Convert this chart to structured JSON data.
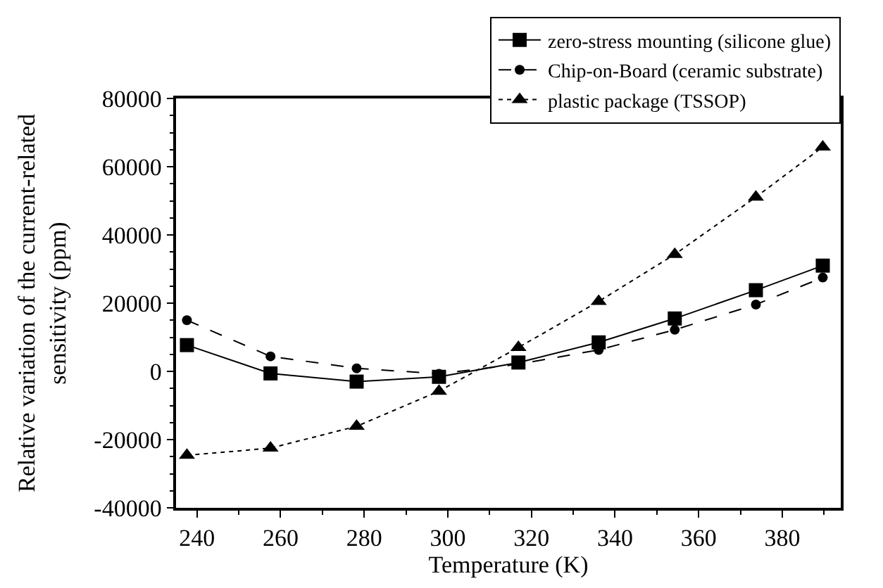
{
  "chart_data": {
    "type": "line",
    "xlabel": "Temperature (K)",
    "ylabel": "Relative variation of the current-related\nsensitivity (ppm)",
    "xlim": [
      235,
      394
    ],
    "xticks": [
      240,
      260,
      280,
      300,
      320,
      340,
      360,
      380
    ],
    "ylim": [
      -40000,
      80000
    ],
    "yticks": [
      -40000,
      -20000,
      0,
      20000,
      40000,
      60000,
      80000
    ],
    "legend": "top right",
    "x": [
      237.6,
      257.6,
      278.2,
      297.9,
      316.9,
      336.1,
      354.3,
      373.7,
      389.7
    ],
    "series": [
      {
        "name": "zero-stress mounting (silicone glue)",
        "color": "#000000",
        "marker": "square",
        "line_style": "solid",
        "values": [
          7700,
          -600,
          -3000,
          -1600,
          2600,
          8500,
          15500,
          23800,
          31000
        ]
      },
      {
        "name": "Chip-on-Board (ceramic substrate)",
        "color": "#000000",
        "marker": "circle",
        "line_style": "dashed",
        "values": [
          15000,
          4400,
          900,
          -700,
          2100,
          6300,
          12200,
          19600,
          27500
        ]
      },
      {
        "name": "plastic package (TSSOP)",
        "color": "#000000",
        "marker": "triangle",
        "line_style": "dotted",
        "values": [
          -24600,
          -22500,
          -16100,
          -5800,
          7000,
          20500,
          34300,
          51100,
          65800
        ]
      }
    ]
  }
}
